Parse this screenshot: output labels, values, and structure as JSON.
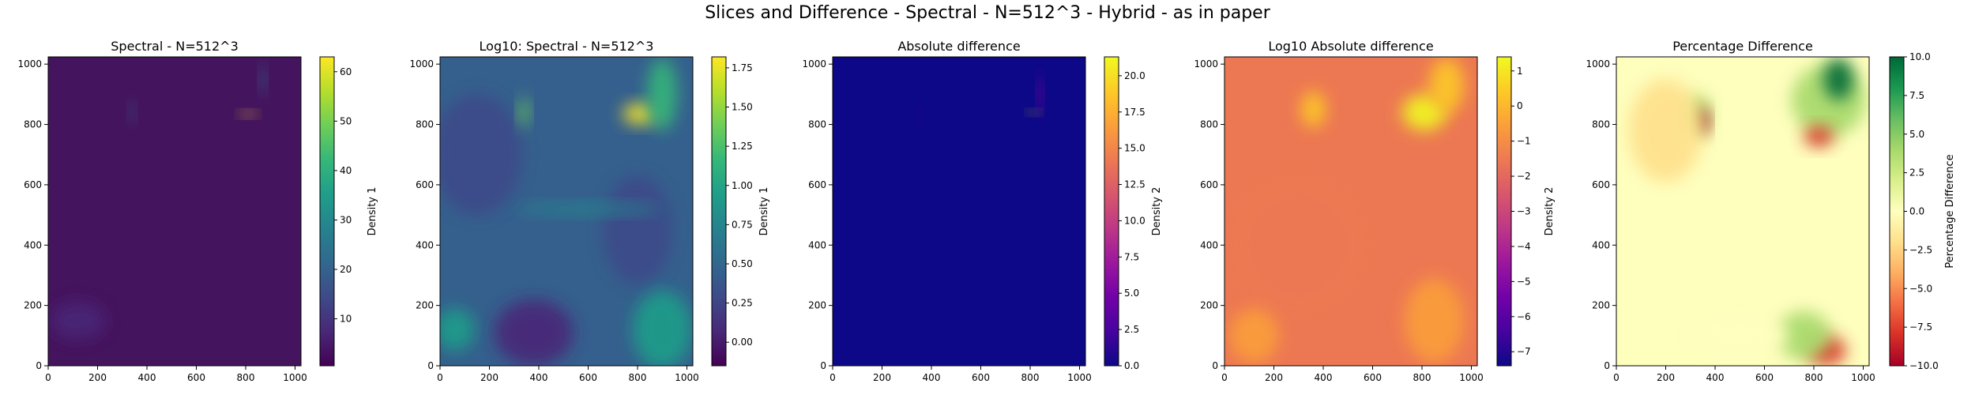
{
  "figure": {
    "title": "Slices and Difference - Spectral - N=512^3 - Hybrid - as in paper"
  },
  "chart_data": [
    {
      "type": "heatmap",
      "title": "Spectral - N=512^3",
      "colormap": "viridis",
      "xlim": [
        0,
        1024
      ],
      "ylim": [
        0,
        1024
      ],
      "xticks": [
        0,
        200,
        400,
        600,
        800,
        1000
      ],
      "yticks": [
        0,
        200,
        400,
        600,
        800,
        1000
      ],
      "colorbar": {
        "label": "Density 1",
        "range": [
          0.5,
          63
        ],
        "ticks": [
          10,
          20,
          30,
          40,
          50,
          60
        ]
      },
      "background": "#45145e",
      "features": [
        {
          "x": 810,
          "y": 835,
          "rx": 28,
          "ry": 10,
          "value": 62
        },
        {
          "x": 870,
          "y": 950,
          "rx": 12,
          "ry": 55,
          "value": 22
        },
        {
          "x": 340,
          "y": 840,
          "rx": 12,
          "ry": 30,
          "value": 18
        },
        {
          "x": 120,
          "y": 150,
          "rx": 110,
          "ry": 60,
          "value": 5
        }
      ]
    },
    {
      "type": "heatmap",
      "title": "Log10: Spectral - N=512^3",
      "colormap": "viridis",
      "xlim": [
        0,
        1024
      ],
      "ylim": [
        0,
        1024
      ],
      "xticks": [
        0,
        200,
        400,
        600,
        800,
        1000
      ],
      "yticks": [
        0,
        200,
        400,
        600,
        800,
        1000
      ],
      "colorbar": {
        "label": "Density 1",
        "range": [
          -0.15,
          1.82
        ],
        "ticks": [
          "0.00",
          "0.25",
          "0.50",
          "0.75",
          "1.00",
          "1.25",
          "1.50",
          "1.75"
        ]
      },
      "background": "#35608d",
      "features": [
        {
          "x": 810,
          "y": 835,
          "rx": 70,
          "ry": 35,
          "value": 1.8
        },
        {
          "x": 900,
          "y": 900,
          "rx": 60,
          "ry": 120,
          "value": 1.2
        },
        {
          "x": 380,
          "y": 110,
          "rx": 160,
          "ry": 110,
          "value": 0.0
        },
        {
          "x": 150,
          "y": 700,
          "rx": 180,
          "ry": 200,
          "value": 0.3
        },
        {
          "x": 800,
          "y": 450,
          "rx": 140,
          "ry": 180,
          "value": 0.35
        },
        {
          "x": 900,
          "y": 120,
          "rx": 120,
          "ry": 130,
          "value": 0.9
        },
        {
          "x": 60,
          "y": 120,
          "rx": 80,
          "ry": 70,
          "value": 1.0
        },
        {
          "x": 340,
          "y": 840,
          "rx": 20,
          "ry": 50,
          "value": 1.3
        },
        {
          "x": 600,
          "y": 520,
          "rx": 300,
          "ry": 20,
          "value": 0.8
        }
      ]
    },
    {
      "type": "heatmap",
      "title": "Absolute difference",
      "colormap": "plasma",
      "xlim": [
        0,
        1024
      ],
      "ylim": [
        0,
        1024
      ],
      "xticks": [
        0,
        200,
        400,
        600,
        800,
        1000
      ],
      "yticks": [
        0,
        200,
        400,
        600,
        800,
        1000
      ],
      "colorbar": {
        "label": "Density 2",
        "range": [
          0,
          21.3
        ],
        "ticks": [
          "0.0",
          "2.5",
          "5.0",
          "7.5",
          "10.0",
          "12.5",
          "15.0",
          "17.5",
          "20.0"
        ]
      },
      "background": "#0d0887",
      "features": [
        {
          "x": 815,
          "y": 840,
          "rx": 20,
          "ry": 8,
          "value": 21
        },
        {
          "x": 840,
          "y": 900,
          "rx": 10,
          "ry": 60,
          "value": 6
        },
        {
          "x": 350,
          "y": 830,
          "rx": 8,
          "ry": 20,
          "value": 3
        }
      ]
    },
    {
      "type": "heatmap",
      "title": "Log10 Absolute difference",
      "colormap": "plasma",
      "xlim": [
        0,
        1024
      ],
      "ylim": [
        0,
        1024
      ],
      "xticks": [
        0,
        200,
        400,
        600,
        800,
        1000
      ],
      "yticks": [
        0,
        200,
        400,
        600,
        800,
        1000
      ],
      "colorbar": {
        "label": "Density 2",
        "range": [
          -7.4,
          1.4
        ],
        "ticks": [
          "−7",
          "−6",
          "−5",
          "−4",
          "−3",
          "−2",
          "−1",
          "0",
          "1"
        ]
      },
      "background": "#ec7853",
      "features": [
        {
          "x": 810,
          "y": 840,
          "rx": 90,
          "ry": 60,
          "value": 1.0
        },
        {
          "x": 900,
          "y": 930,
          "rx": 70,
          "ry": 90,
          "value": 0.5
        },
        {
          "x": 360,
          "y": 850,
          "rx": 50,
          "ry": 60,
          "value": 0.0
        },
        {
          "x": 300,
          "y": 400,
          "rx": 280,
          "ry": 230,
          "value": -1.6
        },
        {
          "x": 850,
          "y": 150,
          "rx": 120,
          "ry": 140,
          "value": -0.7
        },
        {
          "x": 120,
          "y": 100,
          "rx": 100,
          "ry": 90,
          "value": -0.8
        }
      ]
    },
    {
      "type": "heatmap",
      "title": "Percentage Difference",
      "colormap": "RdYlGn",
      "xlim": [
        0,
        1024
      ],
      "ylim": [
        0,
        1024
      ],
      "xticks": [
        0,
        200,
        400,
        600,
        800,
        1000
      ],
      "yticks": [
        0,
        200,
        400,
        600,
        800,
        1000
      ],
      "colorbar": {
        "label": "Percentage Difference",
        "range": [
          -10,
          10
        ],
        "ticks": [
          "−10.0",
          "−7.5",
          "−5.0",
          "−2.5",
          "0.0",
          "2.5",
          "5.0",
          "7.5",
          "10.0"
        ]
      },
      "background": "#fefebd",
      "features": [
        {
          "x": 860,
          "y": 880,
          "rx": 150,
          "ry": 120,
          "value": 3.0
        },
        {
          "x": 900,
          "y": 950,
          "rx": 60,
          "ry": 70,
          "value": 9.0
        },
        {
          "x": 820,
          "y": 760,
          "rx": 60,
          "ry": 35,
          "value": -9.0
        },
        {
          "x": 330,
          "y": 830,
          "rx": 50,
          "ry": 70,
          "value": 4.0
        },
        {
          "x": 350,
          "y": 810,
          "rx": 25,
          "ry": 45,
          "value": -9.5
        },
        {
          "x": 200,
          "y": 780,
          "rx": 150,
          "ry": 170,
          "value": -1.5
        },
        {
          "x": 850,
          "y": 50,
          "rx": 80,
          "ry": 50,
          "value": -8.0
        },
        {
          "x": 760,
          "y": 100,
          "rx": 110,
          "ry": 80,
          "value": 3.5
        },
        {
          "x": 500,
          "y": 100,
          "rx": 200,
          "ry": 60,
          "value": 0.8
        }
      ]
    }
  ]
}
